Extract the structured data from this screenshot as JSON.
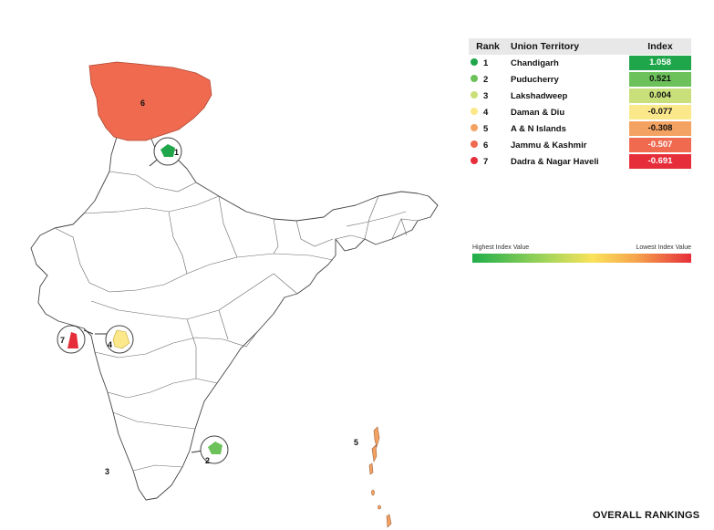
{
  "table": {
    "headers": {
      "rank": "Rank",
      "territory": "Union Territory",
      "index": "Index"
    },
    "rows": [
      {
        "rank": "1",
        "name": "Chandigarh",
        "index": "1.058",
        "color": "#1fa64a"
      },
      {
        "rank": "2",
        "name": "Puducherry",
        "index": "0.521",
        "color": "#6cc15a"
      },
      {
        "rank": "3",
        "name": "Lakshadweep",
        "index": "0.004",
        "color": "#c9e07a"
      },
      {
        "rank": "4",
        "name": "Daman & Diu",
        "index": "-0.077",
        "color": "#fbe88a"
      },
      {
        "rank": "5",
        "name": "A & N Islands",
        "index": "-0.308",
        "color": "#f3a262"
      },
      {
        "rank": "6",
        "name": "Jammu & Kashmir",
        "index": "-0.507",
        "color": "#ef6a4f"
      },
      {
        "rank": "7",
        "name": "Dadra & Nagar Haveli",
        "index": "-0.691",
        "color": "#e62e3a"
      }
    ]
  },
  "legend": {
    "highest": "Highest Index Value",
    "lowest": "Lowest Index Value"
  },
  "map_labels": {
    "jk": "6",
    "chandigarh": "1",
    "dadra": "7",
    "daman": "4",
    "puducherry": "2",
    "lakshadweep": "3",
    "andaman": "5"
  },
  "footer": {
    "title": "OVERALL RANKINGS"
  },
  "colors": {
    "jk_fill": "#ef6a4f",
    "chandigarh_fill": "#1fa64a",
    "puducherry_fill": "#6cc15a",
    "daman_fill": "#fbe88a",
    "dadra_fill": "#e62e3a",
    "andaman_fill": "#f3a262"
  }
}
